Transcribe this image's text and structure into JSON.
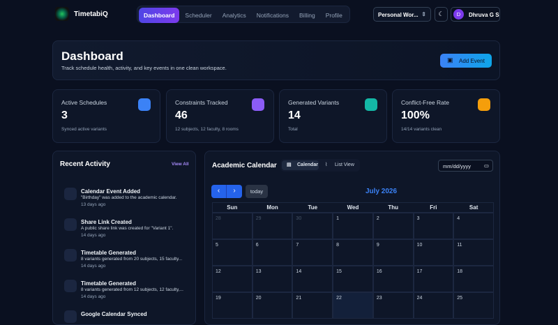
{
  "header": {
    "brand": "TimetabiQ",
    "nav": [
      "Dashboard",
      "Scheduler",
      "Analytics",
      "Notifications",
      "Billing",
      "Profile"
    ],
    "workspace": "Personal Wor...",
    "avatar": "D",
    "user": "Dhruva G S"
  },
  "hero": {
    "title": "Dashboard",
    "subtitle": "Track schedule health, activity, and key events in one clean workspace.",
    "button": "Add Event"
  },
  "stats": [
    {
      "label": "Active Schedules",
      "value": "3",
      "note": "Synced active variants",
      "color": "#3b82f6"
    },
    {
      "label": "Constraints Tracked",
      "value": "46",
      "note": "12 subjects, 12 faculty, 8 rooms",
      "color": "#8b5cf6"
    },
    {
      "label": "Generated Variants",
      "value": "14",
      "note": "Total",
      "color": "#14b8a6"
    },
    {
      "label": "Conflict-Free Rate",
      "value": "100%",
      "note": "14/14 variants clean",
      "color": "#f59e0b"
    }
  ],
  "activity": {
    "title": "Recent Activity",
    "link": "View All",
    "items": [
      {
        "title": "Calendar Event Added",
        "text": "\"Birthday\" was added to the academic calendar.",
        "time": "13 days ago"
      },
      {
        "title": "Share Link Created",
        "text": "A public share link was created for \"Variant 1\".",
        "time": "14 days ago"
      },
      {
        "title": "Timetable Generated",
        "text": "8 variants generated from 20 subjects, 15 faculty...",
        "time": "14 days ago"
      },
      {
        "title": "Timetable Generated",
        "text": "8 variants generated from 12 subjects, 12 faculty,...",
        "time": "14 days ago"
      },
      {
        "title": "Google Calendar Synced"
      }
    ]
  },
  "calendar": {
    "title": "Academic Calendar",
    "tabs": [
      "Calendar",
      "List View"
    ],
    "date_input": "mm/dd/yyyy",
    "today": "today",
    "month": "July 2026",
    "weekdays": [
      "Sun",
      "Mon",
      "Tue",
      "Wed",
      "Thu",
      "Fri",
      "Sat"
    ],
    "weeks": [
      [
        28,
        29,
        30,
        1,
        2,
        3,
        4
      ],
      [
        5,
        6,
        7,
        8,
        9,
        10,
        11
      ],
      [
        12,
        13,
        14,
        15,
        16,
        17,
        18
      ],
      [
        19,
        20,
        21,
        22,
        23,
        24,
        25
      ]
    ],
    "highlight_day": 22
  }
}
